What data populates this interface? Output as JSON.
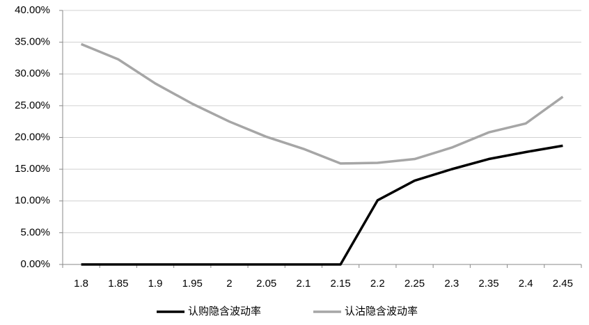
{
  "chart_data": {
    "type": "line",
    "categories": [
      "1.8",
      "1.85",
      "1.9",
      "1.95",
      "2",
      "2.05",
      "2.1",
      "2.15",
      "2.2",
      "2.25",
      "2.3",
      "2.35",
      "2.4",
      "2.45"
    ],
    "series": [
      {
        "name": "认购隐含波动率",
        "color": "#000000",
        "values": [
          0,
          0,
          0,
          0,
          0,
          0,
          0,
          0,
          10.1,
          13.2,
          15.0,
          16.6,
          17.7,
          18.7
        ]
      },
      {
        "name": "认沽隐含波动率",
        "color": "#a6a6a6",
        "values": [
          34.7,
          32.3,
          28.5,
          25.3,
          22.5,
          20.1,
          18.2,
          15.9,
          16.0,
          16.6,
          18.4,
          20.8,
          22.2,
          26.4
        ]
      }
    ],
    "ylim": [
      0,
      40
    ],
    "yticks": [
      {
        "value": 0,
        "label": "0.00%"
      },
      {
        "value": 5,
        "label": "5.00%"
      },
      {
        "value": 10,
        "label": "10.00%"
      },
      {
        "value": 15,
        "label": "15.00%"
      },
      {
        "value": 20,
        "label": "20.00%"
      },
      {
        "value": 25,
        "label": "25.00%"
      },
      {
        "value": 30,
        "label": "30.00%"
      },
      {
        "value": 35,
        "label": "35.00%"
      },
      {
        "value": 40,
        "label": "40.00%"
      }
    ],
    "grid": true,
    "legend": "bottom"
  }
}
